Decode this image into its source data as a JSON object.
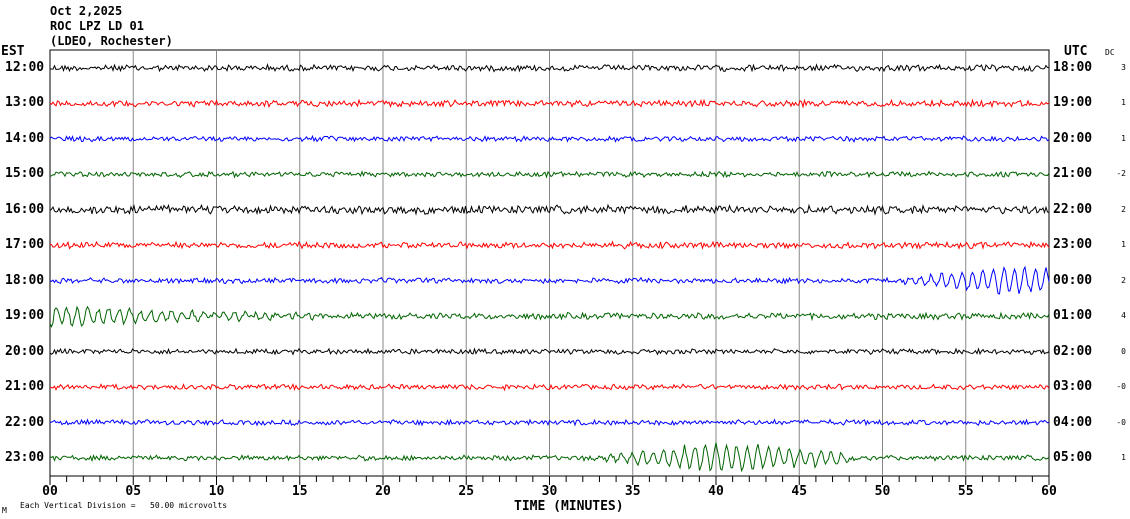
{
  "header": {
    "date": "Oct 2,2025",
    "station": "ROC LPZ LD 01",
    "network": "(LDEO, Rochester)"
  },
  "left_tz": "EST",
  "right_tz": "UTC",
  "dc_label": "DC",
  "footer": {
    "scale": "Each Vertical Division =   50.00 microvolts",
    "mark": "M"
  },
  "chart_data": {
    "type": "line",
    "title": "ROC LPZ LD 01 helicorder, Oct 2,2025",
    "xlabel": "TIME (MINUTES)",
    "xlim": [
      0,
      60
    ],
    "xticks": [
      "00",
      "05",
      "10",
      "15",
      "20",
      "25",
      "30",
      "35",
      "40",
      "45",
      "50",
      "55",
      "60"
    ],
    "minor_tick_step_minutes": 1,
    "grid": "vertical every 5 minutes",
    "rows": [
      {
        "est": "12:00",
        "utc": "18:00",
        "dc": "3",
        "color": "#000000",
        "noise": 3,
        "events": []
      },
      {
        "est": "13:00",
        "utc": "19:00",
        "dc": "1",
        "color": "#ff0000",
        "noise": 3,
        "events": []
      },
      {
        "est": "14:00",
        "utc": "20:00",
        "dc": "1",
        "color": "#0000ff",
        "noise": 2.5,
        "events": []
      },
      {
        "est": "15:00",
        "utc": "21:00",
        "dc": "-2",
        "color": "#006400",
        "noise": 2.5,
        "events": []
      },
      {
        "est": "16:00",
        "utc": "22:00",
        "dc": "2",
        "color": "#000000",
        "noise": 4,
        "events": []
      },
      {
        "est": "17:00",
        "utc": "23:00",
        "dc": "1",
        "color": "#ff0000",
        "noise": 3,
        "events": []
      },
      {
        "est": "18:00",
        "utc": "00:00",
        "dc": "2",
        "color": "#0000ff",
        "noise": 2.5,
        "events": [
          {
            "start": 50,
            "peak": 58,
            "end": 60,
            "amp": 15
          }
        ]
      },
      {
        "est": "19:00",
        "utc": "01:00",
        "dc": "4",
        "color": "#006400",
        "noise": 3,
        "events": [
          {
            "start": -2,
            "peak": 0,
            "end": 19,
            "amp": 10
          }
        ]
      },
      {
        "est": "20:00",
        "utc": "02:00",
        "dc": "0",
        "color": "#000000",
        "noise": 2.5,
        "events": []
      },
      {
        "est": "21:00",
        "utc": "03:00",
        "dc": "-0",
        "color": "#ff0000",
        "noise": 2.5,
        "events": []
      },
      {
        "est": "22:00",
        "utc": "04:00",
        "dc": "-0",
        "color": "#0000ff",
        "noise": 2.5,
        "events": []
      },
      {
        "est": "23:00",
        "utc": "05:00",
        "dc": "1",
        "color": "#006400",
        "noise": 2.5,
        "events": [
          {
            "start": 32,
            "peak": 40,
            "end": 48,
            "amp": 15
          }
        ]
      }
    ]
  }
}
